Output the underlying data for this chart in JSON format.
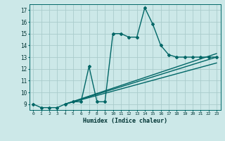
{
  "title": "",
  "xlabel": "Humidex (Indice chaleur)",
  "ylabel": "",
  "bg_color": "#cce8e8",
  "line_color": "#006666",
  "grid_color": "#aacccc",
  "xlim": [
    -0.5,
    23.5
  ],
  "ylim": [
    8.5,
    17.5
  ],
  "yticks": [
    9,
    10,
    11,
    12,
    13,
    14,
    15,
    16,
    17
  ],
  "xticks": [
    0,
    1,
    2,
    3,
    4,
    5,
    6,
    7,
    8,
    9,
    10,
    11,
    12,
    13,
    14,
    15,
    16,
    17,
    18,
    19,
    20,
    21,
    22,
    23
  ],
  "xtick_labels": [
    "0",
    "1",
    "2",
    "3",
    "4",
    "5",
    "6",
    "7",
    "8",
    "9",
    "10",
    "11",
    "12",
    "13",
    "14",
    "15",
    "16",
    "17",
    "18",
    "19",
    "20",
    "21",
    "22",
    "23"
  ],
  "line1_x": [
    0,
    1,
    2,
    3,
    4,
    5,
    6,
    7,
    8,
    9,
    10,
    11,
    12,
    13,
    14,
    15,
    16,
    17,
    18,
    19,
    20,
    21,
    22,
    23
  ],
  "line1_y": [
    9.0,
    8.7,
    8.7,
    8.7,
    9.0,
    9.2,
    9.2,
    12.2,
    9.2,
    9.2,
    15.0,
    15.0,
    14.7,
    14.7,
    17.2,
    15.8,
    14.0,
    13.2,
    13.0,
    13.0,
    13.0,
    13.0,
    13.0,
    13.0
  ],
  "line2_x": [
    4,
    23
  ],
  "line2_y": [
    9.0,
    13.0
  ],
  "line3_x": [
    4,
    23
  ],
  "line3_y": [
    9.0,
    12.5
  ],
  "line4_x": [
    4,
    23
  ],
  "line4_y": [
    9.0,
    13.3
  ],
  "marker_size": 2,
  "line_width": 1.0
}
